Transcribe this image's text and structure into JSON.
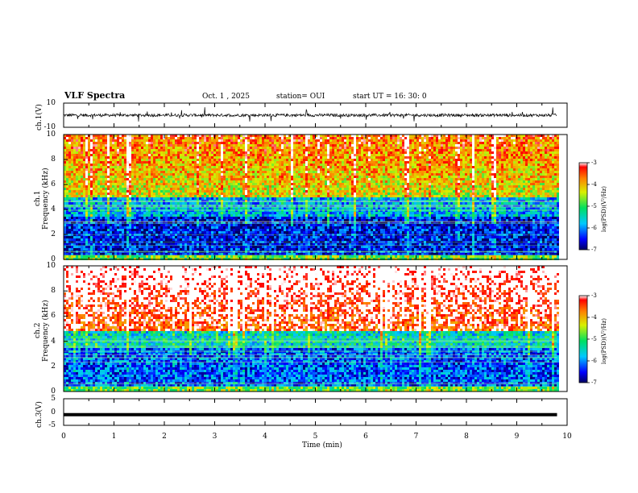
{
  "header": {
    "title": "VLF Spectra",
    "date": "Oct. 1 , 2025",
    "station": "station= OUI",
    "start_ut": "start UT =  16: 30: 0"
  },
  "colors": {
    "low": "#000080",
    "mid": "#00d050",
    "high": "#ff2000",
    "trace": "#000000"
  },
  "chart_data": [
    {
      "type": "line",
      "id": "ch1-waveform",
      "ylabel": "ch.1(V)",
      "ylim": [
        -10,
        10
      ],
      "ytick_labels": [
        "10",
        "-10"
      ],
      "xlim": [
        0,
        10
      ],
      "description_values": "noisy waveform centered near 0 V with spikes",
      "baseline": 0
    },
    {
      "type": "heatmap",
      "id": "ch1-spectrogram",
      "ylabel_line1": "ch.1",
      "ylabel_line2": "Frequency (kHz)",
      "ylim": [
        0,
        10
      ],
      "ytick_labels": [
        "0",
        "2",
        "4",
        "6",
        "8",
        "10"
      ],
      "xlim": [
        0,
        10
      ],
      "data_end_min": 9.8,
      "colorbar": {
        "label": "log(PSD)(V²/Hz)",
        "range": [
          -7,
          -3
        ],
        "tick_labels": [
          "-3",
          "-4",
          "-5",
          "-6",
          "-7"
        ]
      }
    },
    {
      "type": "heatmap",
      "id": "ch2-spectrogram",
      "ylabel_line1": "ch.2",
      "ylabel_line2": "Frequency (kHz)",
      "ylim": [
        0,
        10
      ],
      "ytick_labels": [
        "0",
        "2",
        "4",
        "6",
        "8",
        "10"
      ],
      "xlim": [
        0,
        10
      ],
      "data_end_min": 9.8,
      "colorbar": {
        "label": "log(PSD)(V²/Hz)",
        "range": [
          -7,
          -3
        ],
        "tick_labels": [
          "-3",
          "-4",
          "-5",
          "-6",
          "-7"
        ]
      }
    },
    {
      "type": "line",
      "id": "ch3-waveform",
      "ylabel": "ch.3(V)",
      "ylim": [
        -5,
        5
      ],
      "ytick_labels": [
        "5",
        "0",
        "-5"
      ],
      "xlim": [
        0,
        10
      ],
      "baseline": -1
    }
  ],
  "xaxis": {
    "label": "Time (min)",
    "tick_labels": [
      "0",
      "1",
      "2",
      "3",
      "4",
      "5",
      "6",
      "7",
      "8",
      "9",
      "10"
    ]
  }
}
